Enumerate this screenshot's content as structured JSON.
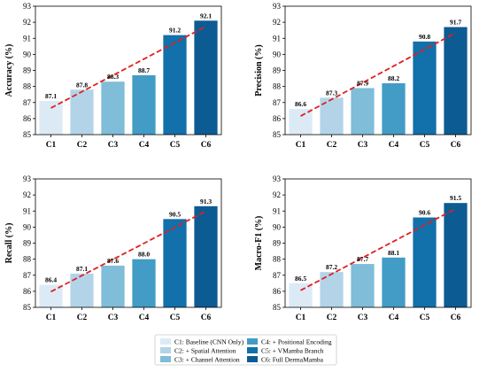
{
  "chart_data": [
    {
      "type": "bar",
      "categories": [
        "C1",
        "C2",
        "C3",
        "C4",
        "C5",
        "C6"
      ],
      "values": [
        87.1,
        87.8,
        88.3,
        88.7,
        91.2,
        92.1
      ],
      "value_labels": [
        "87.1",
        "87.8",
        "88.3",
        "88.7",
        "91.2",
        "92.1"
      ],
      "ylabel": "Accuracy (%)",
      "ylim": [
        85,
        93
      ],
      "yticks": [
        "85",
        "86",
        "87",
        "88",
        "89",
        "90",
        "91",
        "92",
        "93"
      ],
      "trend_line": true,
      "grid": false
    },
    {
      "type": "bar",
      "categories": [
        "C1",
        "C2",
        "C3",
        "C4",
        "C5",
        "C6"
      ],
      "values": [
        86.6,
        87.3,
        87.9,
        88.2,
        90.8,
        91.7
      ],
      "value_labels": [
        "86.6",
        "87.3",
        "87.9",
        "88.2",
        "90.8",
        "91.7"
      ],
      "ylabel": "Precision (%)",
      "ylim": [
        85,
        93
      ],
      "yticks": [
        "85",
        "86",
        "87",
        "88",
        "89",
        "90",
        "91",
        "92",
        "93"
      ],
      "trend_line": true,
      "grid": false
    },
    {
      "type": "bar",
      "categories": [
        "C1",
        "C2",
        "C3",
        "C4",
        "C5",
        "C6"
      ],
      "values": [
        86.4,
        87.1,
        87.6,
        88.0,
        90.5,
        91.3
      ],
      "value_labels": [
        "86.4",
        "87.1",
        "87.6",
        "88.0",
        "90.5",
        "91.3"
      ],
      "ylabel": "Recall (%)",
      "ylim": [
        85,
        93
      ],
      "yticks": [
        "85",
        "86",
        "87",
        "88",
        "89",
        "90",
        "91",
        "92",
        "93"
      ],
      "trend_line": true,
      "grid": false
    },
    {
      "type": "bar",
      "categories": [
        "C1",
        "C2",
        "C3",
        "C4",
        "C5",
        "C6"
      ],
      "values": [
        86.5,
        87.2,
        87.7,
        88.1,
        90.6,
        91.5
      ],
      "value_labels": [
        "86.5",
        "87.2",
        "87.7",
        "88.1",
        "90.6",
        "91.5"
      ],
      "ylabel": "Macro-F1 (%)",
      "ylim": [
        85,
        93
      ],
      "yticks": [
        "85",
        "86",
        "87",
        "88",
        "89",
        "90",
        "91",
        "92",
        "93"
      ],
      "trend_line": true,
      "grid": false
    }
  ],
  "colors": {
    "bars": [
      "#dceaf6",
      "#b3d4e8",
      "#7fbdd9",
      "#429cc6",
      "#1270aa",
      "#0d5b93"
    ],
    "trend_line": "#e11f1f",
    "axis": "#000000"
  },
  "legend": {
    "placement": "bottom-center",
    "entries": [
      "C1: Baseline (CNN Only)",
      "C2: + Spatial Attention",
      "C3: + Channel Attention",
      "C4: + Positional Encoding",
      "C5: + VMamba Branch",
      "C6: Full DermaMamba"
    ]
  }
}
